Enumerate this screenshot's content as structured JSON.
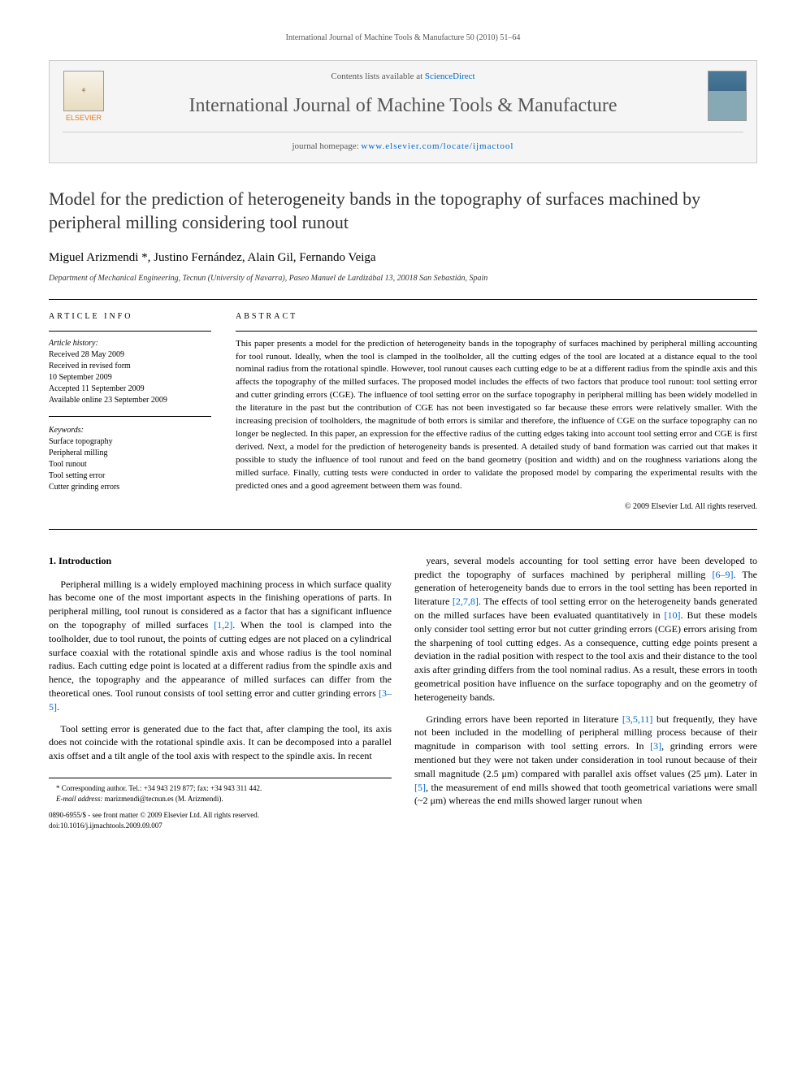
{
  "running_header": "International Journal of Machine Tools & Manufacture 50 (2010) 51–64",
  "journal_box": {
    "contents_prefix": "Contents lists available at ",
    "contents_link": "ScienceDirect",
    "journal_name": "International Journal of Machine Tools & Manufacture",
    "homepage_prefix": "journal homepage: ",
    "homepage_link": "www.elsevier.com/locate/ijmactool",
    "publisher_label": "ELSEVIER"
  },
  "title": "Model for the prediction of heterogeneity bands in the topography of surfaces machined by peripheral milling considering tool runout",
  "authors": "Miguel Arizmendi *, Justino Fernández, Alain Gil, Fernando Veiga",
  "affiliation": "Department of Mechanical Engineering, Tecnun (University of Navarra), Paseo Manuel de Lardizábal 13, 20018 San Sebastián, Spain",
  "article_info": {
    "heading": "ARTICLE INFO",
    "history_label": "Article history:",
    "history_lines": "Received 28 May 2009\nReceived in revised form\n10 September 2009\nAccepted 11 September 2009\nAvailable online 23 September 2009",
    "keywords_label": "Keywords:",
    "keywords": "Surface topography\nPeripheral milling\nTool runout\nTool setting error\nCutter grinding errors"
  },
  "abstract": {
    "heading": "ABSTRACT",
    "body": "This paper presents a model for the prediction of heterogeneity bands in the topography of surfaces machined by peripheral milling accounting for tool runout. Ideally, when the tool is clamped in the toolholder, all the cutting edges of the tool are located at a distance equal to the tool nominal radius from the rotational spindle. However, tool runout causes each cutting edge to be at a different radius from the spindle axis and this affects the topography of the milled surfaces. The proposed model includes the effects of two factors that produce tool runout: tool setting error and cutter grinding errors (CGE). The influence of tool setting error on the surface topography in peripheral milling has been widely modelled in the literature in the past but the contribution of CGE has not been investigated so far because these errors were relatively smaller. With the increasing precision of toolholders, the magnitude of both errors is similar and therefore, the influence of CGE on the surface topography can no longer be neglected. In this paper, an expression for the effective radius of the cutting edges taking into account tool setting error and CGE is first derived. Next, a model for the prediction of heterogeneity bands is presented. A detailed study of band formation was carried out that makes it possible to study the influence of tool runout and feed on the band geometry (position and width) and on the roughness variations along the milled surface. Finally, cutting tests were conducted in order to validate the proposed model by comparing the experimental results with the predicted ones and a good agreement between them was found.",
    "copyright": "© 2009 Elsevier Ltd. All rights reserved."
  },
  "section1": {
    "heading": "1. Introduction",
    "p1": "Peripheral milling is a widely employed machining process in which surface quality has become one of the most important aspects in the finishing operations of parts. In peripheral milling, tool runout is considered as a factor that has a significant influence on the topography of milled surfaces [1,2]. When the tool is clamped into the toolholder, due to tool runout, the points of cutting edges are not placed on a cylindrical surface coaxial with the rotational spindle axis and whose radius is the tool nominal radius. Each cutting edge point is located at a different radius from the spindle axis and hence, the topography and the appearance of milled surfaces can differ from the theoretical ones. Tool runout consists of tool setting error and cutter grinding errors [3–5].",
    "p2": "Tool setting error is generated due to the fact that, after clamping the tool, its axis does not coincide with the rotational spindle axis. It can be decomposed into a parallel axis offset and a tilt angle of the tool axis with respect to the spindle axis. In recent",
    "p3": "years, several models accounting for tool setting error have been developed to predict the topography of surfaces machined by peripheral milling [6–9]. The generation of heterogeneity bands due to errors in the tool setting has been reported in literature [2,7,8]. The effects of tool setting error on the heterogeneity bands generated on the milled surfaces have been evaluated quantitatively in [10]. But these models only consider tool setting error but not cutter grinding errors (CGE) errors arising from the sharpening of tool cutting edges. As a consequence, cutting edge points present a deviation in the radial position with respect to the tool axis and their distance to the tool axis after grinding differs from the tool nominal radius. As a result, these errors in tooth geometrical position have influence on the surface topography and on the geometry of heterogeneity bands.",
    "p4": "Grinding errors have been reported in literature [3,5,11] but frequently, they have not been included in the modelling of peripheral milling process because of their magnitude in comparison with tool setting errors. In [3], grinding errors were mentioned but they were not taken under consideration in tool runout because of their small magnitude (2.5 μm) compared with parallel axis offset values (25 μm). Later in [5], the measurement of end mills showed that tooth geometrical variations were small (~2 μm) whereas the end mills showed larger runout when"
  },
  "citations": {
    "c1": "[1,2]",
    "c2": "[3–5]",
    "c3": "[6–9]",
    "c4": "[2,7,8]",
    "c5": "[10]",
    "c6": "[3,5,11]",
    "c7": "[3]",
    "c8": "[5]"
  },
  "footnote": {
    "corr": "* Corresponding author. Tel.: +34 943 219 877; fax: +34 943 311 442.",
    "email_label": "E-mail address: ",
    "email": "marizmendi@tecnun.es (M. Arizmendi)."
  },
  "doi": {
    "line1": "0890-6955/$ - see front matter © 2009 Elsevier Ltd. All rights reserved.",
    "line2": "doi:10.1016/j.ijmachtools.2009.09.007"
  },
  "colors": {
    "link": "#0066cc",
    "elsevier_orange": "#e67817",
    "text": "#000000",
    "muted": "#555555"
  }
}
